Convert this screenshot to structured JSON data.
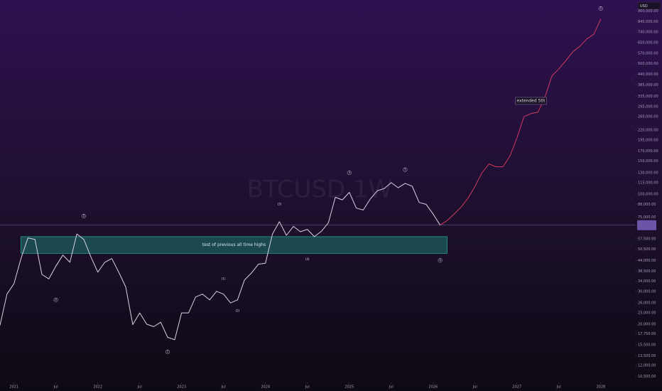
{
  "chart_data": {
    "type": "line",
    "watermark": "BTCUSD 1W",
    "currency": "USD",
    "log_scale": true,
    "x": [
      "2020-11",
      "2020-12",
      "2021-01",
      "2021-02",
      "2021-03",
      "2021-04",
      "2021-05",
      "2021-06",
      "2021-07",
      "2021-08",
      "2021-09",
      "2021-10",
      "2021-11",
      "2021-12",
      "2022-01",
      "2022-02",
      "2022-03",
      "2022-04",
      "2022-05",
      "2022-06",
      "2022-07",
      "2022-08",
      "2022-09",
      "2022-10",
      "2022-11",
      "2022-12",
      "2023-01",
      "2023-02",
      "2023-03",
      "2023-04",
      "2023-05",
      "2023-06",
      "2023-07",
      "2023-08",
      "2023-09",
      "2023-10",
      "2023-11",
      "2023-12",
      "2024-01",
      "2024-02",
      "2024-03",
      "2024-04",
      "2024-05",
      "2024-06",
      "2024-07",
      "2024-08",
      "2024-09",
      "2024-10",
      "2024-11",
      "2024-12",
      "2025-01",
      "2025-02",
      "2025-03",
      "2025-04",
      "2025-05",
      "2025-06",
      "2025-07",
      "2025-08",
      "2025-09",
      "2025-10",
      "2025-11",
      "2025-12",
      "2026-01",
      "2026-02",
      "2026-03",
      "2026-04",
      "2026-05",
      "2026-06",
      "2026-07",
      "2026-08",
      "2026-09",
      "2026-10",
      "2026-11",
      "2026-12",
      "2027-01",
      "2027-02",
      "2027-03",
      "2027-04",
      "2027-05",
      "2027-06",
      "2027-07",
      "2027-08",
      "2027-09",
      "2027-10",
      "2027-11",
      "2027-12",
      "2028-01"
    ],
    "series": [
      {
        "color": "#d8d2e2",
        "values": [
          19700,
          29000,
          33000,
          45000,
          58000,
          57000,
          37000,
          35000,
          41000,
          47000,
          43000,
          61000,
          57000,
          46000,
          38000,
          43000,
          45000,
          38000,
          31700,
          19900,
          23000,
          20000,
          19400,
          20500,
          17000,
          16500,
          23000,
          23000,
          28000,
          29000,
          27000,
          30000,
          29000,
          26000,
          27000,
          34500,
          37700,
          42000,
          42500,
          61000,
          71000,
          60000,
          67000,
          62700,
          64600,
          59000,
          63000,
          70000,
          96000,
          93000,
          102000,
          84000,
          82000,
          94000,
          104000,
          107000,
          115000,
          108000,
          114000,
          110000,
          90000,
          88000,
          78000,
          68000,
          null,
          null,
          null,
          null,
          null,
          null,
          null,
          null,
          null,
          null,
          null,
          null,
          null,
          null,
          null,
          null,
          null,
          null,
          null,
          null,
          null,
          null,
          null
        ]
      },
      {
        "color": "#d03a5e",
        "values": [
          null,
          null,
          null,
          null,
          null,
          null,
          null,
          null,
          null,
          null,
          null,
          null,
          null,
          null,
          null,
          null,
          null,
          null,
          null,
          null,
          null,
          null,
          null,
          null,
          null,
          null,
          null,
          null,
          null,
          null,
          null,
          null,
          null,
          null,
          null,
          null,
          null,
          null,
          null,
          null,
          null,
          null,
          null,
          null,
          null,
          null,
          null,
          null,
          null,
          null,
          null,
          null,
          null,
          null,
          null,
          null,
          null,
          null,
          null,
          null,
          null,
          null,
          null,
          68000,
          72000,
          78000,
          85000,
          95000,
          110000,
          130000,
          145000,
          140000,
          140000,
          160000,
          200000,
          260000,
          270000,
          275000,
          330000,
          430000,
          470000,
          520000,
          580000,
          620000,
          680000,
          720000,
          870000
        ]
      }
    ],
    "xlim": [
      "2020-11",
      "2028-06"
    ],
    "xticks": [
      {
        "value": "2021-01",
        "label": "2021"
      },
      {
        "value": "2021-07",
        "label": "Jul"
      },
      {
        "value": "2022-01",
        "label": "2022"
      },
      {
        "value": "2022-07",
        "label": "Jul"
      },
      {
        "value": "2023-01",
        "label": "2023"
      },
      {
        "value": "2023-07",
        "label": "Jul"
      },
      {
        "value": "2024-01",
        "label": "2024"
      },
      {
        "value": "2024-07",
        "label": "Jul"
      },
      {
        "value": "2025-01",
        "label": "2025"
      },
      {
        "value": "2025-07",
        "label": "Jul"
      },
      {
        "value": "2026-01",
        "label": "2026"
      },
      {
        "value": "2026-07",
        "label": "Jul"
      },
      {
        "value": "2027-01",
        "label": "2027"
      },
      {
        "value": "2027-07",
        "label": "Jul"
      },
      {
        "value": "2028-01",
        "label": "2028"
      }
    ],
    "ylim": [
      9900,
      1100000
    ],
    "yticks": [
      {
        "value": 960000,
        "label": "960,000.00"
      },
      {
        "value": 840000,
        "label": "840,000.00"
      },
      {
        "value": 740000,
        "label": "740,000.00"
      },
      {
        "value": 650000,
        "label": "650,000.00"
      },
      {
        "value": 570000,
        "label": "570,000.00"
      },
      {
        "value": 500000,
        "label": "500,000.00"
      },
      {
        "value": 440000,
        "label": "440,000.00"
      },
      {
        "value": 385000,
        "label": "385,000.00"
      },
      {
        "value": 335000,
        "label": "335,000.00"
      },
      {
        "value": 295000,
        "label": "295,000.00"
      },
      {
        "value": 260000,
        "label": "260,000.00"
      },
      {
        "value": 220000,
        "label": "220,000.00"
      },
      {
        "value": 195000,
        "label": "195,000.00"
      },
      {
        "value": 170000,
        "label": "170,000.00"
      },
      {
        "value": 150000,
        "label": "150,000.00"
      },
      {
        "value": 130000,
        "label": "130,000.00"
      },
      {
        "value": 115000,
        "label": "115,000.00"
      },
      {
        "value": 100000,
        "label": "100,000.00"
      },
      {
        "value": 88000,
        "label": "88,000.00"
      },
      {
        "value": 75000,
        "label": "75,000.00"
      },
      {
        "value": 57500,
        "label": "57,500.00"
      },
      {
        "value": 50500,
        "label": "50,500.00"
      },
      {
        "value": 44000,
        "label": "44,000.00"
      },
      {
        "value": 38500,
        "label": "38,500.00"
      },
      {
        "value": 34000,
        "label": "34,000.00"
      },
      {
        "value": 30000,
        "label": "30,000.00"
      },
      {
        "value": 26000,
        "label": "26,000.00"
      },
      {
        "value": 23000,
        "label": "23,000.00"
      },
      {
        "value": 20000,
        "label": "20,000.00"
      },
      {
        "value": 17750,
        "label": "17,750.00"
      },
      {
        "value": 15500,
        "label": "15,500.00"
      },
      {
        "value": 13500,
        "label": "13,500.00"
      },
      {
        "value": 12000,
        "label": "12,000.00"
      },
      {
        "value": 10500,
        "label": "10,500.00"
      }
    ],
    "zone": {
      "text": "test of previous all time highs",
      "x": [
        "2021-02",
        "2026-03"
      ],
      "y": [
        48000,
        59000
      ],
      "color": "#1f8f86"
    },
    "annotations": [
      {
        "text": "extended 5th",
        "x": "2027-03",
        "y": 316000
      },
      {
        "text": "4",
        "x": "2021-07",
        "y": 27000
      },
      {
        "text": "5",
        "x": "2021-11",
        "y": 76000
      },
      {
        "text": "1",
        "x": "2022-11",
        "y": 14200
      },
      {
        "text": "(1)",
        "x": "2023-07",
        "y": 35000
      },
      {
        "text": "(2)",
        "x": "2023-09",
        "y": 23500
      },
      {
        "text": "(3)",
        "x": "2024-03",
        "y": 88000
      },
      {
        "text": "(4)",
        "x": "2024-07",
        "y": 44500
      },
      {
        "text": "3",
        "x": "2025-01",
        "y": 130000
      },
      {
        "text": "5",
        "x": "2025-09",
        "y": 135000
      },
      {
        "text": "4",
        "x": "2026-02",
        "y": 44000
      },
      {
        "text": "5",
        "x": "2028-01",
        "y": 990000
      }
    ]
  }
}
